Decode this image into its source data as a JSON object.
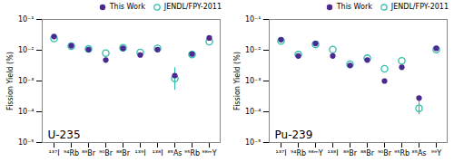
{
  "chart_data": [
    {
      "type": "scatter",
      "annotation": "U-235",
      "ylabel": "Fission Yield (%)",
      "categories": [
        "¹³⁷I",
        "⁹⁴Rb",
        "⁸⁹Br",
        "⁹⁰Br",
        "⁸⁸Br",
        "¹³⁹I",
        "¹³⁸I",
        "⁸⁵As",
        "⁹⁵Rb",
        "⁹⁸ᵐY"
      ],
      "series": [
        {
          "name": "This Work",
          "color": "#4b2991",
          "marker": "circle",
          "values": [
            0.028,
            0.014,
            0.0105,
            0.0048,
            0.0115,
            0.007,
            0.0105,
            0.0015,
            0.0075,
            0.025
          ]
        },
        {
          "name": "JENDL/FPY-2011",
          "color": "#2dbdaa",
          "marker": "hollow",
          "values": [
            0.024,
            0.0135,
            0.011,
            0.008,
            0.012,
            0.0085,
            0.0115,
            0.0012,
            0.0072,
            0.019
          ],
          "error_low": [
            0.0,
            0.0,
            0.0,
            0.0,
            0.0,
            0.0,
            0.0,
            0.0007,
            0.0,
            0.0
          ],
          "error_high": [
            0.0,
            0.0,
            0.0,
            0.0,
            0.0,
            0.0,
            0.0,
            0.0015,
            0.0,
            0.0
          ]
        }
      ],
      "log": "y",
      "ylim": [
        1e-05,
        0.1
      ],
      "yticks": [
        {
          "value": 1e-05,
          "label": "10⁻⁵"
        },
        {
          "value": 0.0001,
          "label": "10⁻⁴"
        },
        {
          "value": 0.001,
          "label": "10⁻³"
        },
        {
          "value": 0.01,
          "label": "10⁻²"
        },
        {
          "value": 0.1,
          "label": "10⁻¹"
        }
      ],
      "grid": false,
      "legend": "upper right"
    },
    {
      "type": "scatter",
      "annotation": "Pu-239",
      "ylabel": "Fission Yield (%)",
      "categories": [
        "¹³⁷I",
        "⁹⁴Rb",
        "⁹⁸ᵐY",
        "¹³⁸I",
        "⁸⁹Br",
        "⁸⁸Br",
        "⁹⁰Br",
        "⁹⁵Rb",
        "⁸⁵As",
        "⁹⁹Y"
      ],
      "series": [
        {
          "name": "This Work",
          "color": "#4b2991",
          "marker": "circle",
          "values": [
            0.022,
            0.0065,
            0.0165,
            0.0065,
            0.0032,
            0.0048,
            0.001,
            0.0028,
            0.00028,
            0.0115
          ]
        },
        {
          "name": "JENDL/FPY-2011",
          "color": "#2dbdaa",
          "marker": "hollow",
          "values": [
            0.02,
            0.0072,
            0.0155,
            0.0105,
            0.0035,
            0.0055,
            0.0025,
            0.0045,
            0.00013,
            0.0105
          ],
          "error_low": [
            0.0,
            0.0,
            0.0,
            0.0,
            0.0,
            0.0,
            0.0,
            0.0,
            5e-05,
            0.0
          ],
          "error_high": [
            0.0,
            0.0,
            0.0,
            0.0,
            0.0,
            0.0,
            0.0,
            0.0,
            0.00015,
            0.0
          ]
        }
      ],
      "log": "y",
      "ylim": [
        1e-05,
        0.1
      ],
      "yticks": [
        {
          "value": 1e-05,
          "label": "10⁻⁵"
        },
        {
          "value": 0.0001,
          "label": "10⁻⁴"
        },
        {
          "value": 0.001,
          "label": "10⁻³"
        },
        {
          "value": 0.01,
          "label": "10⁻²"
        },
        {
          "value": 0.1,
          "label": "10⁻¹"
        }
      ],
      "grid": false,
      "legend": "upper right"
    }
  ]
}
